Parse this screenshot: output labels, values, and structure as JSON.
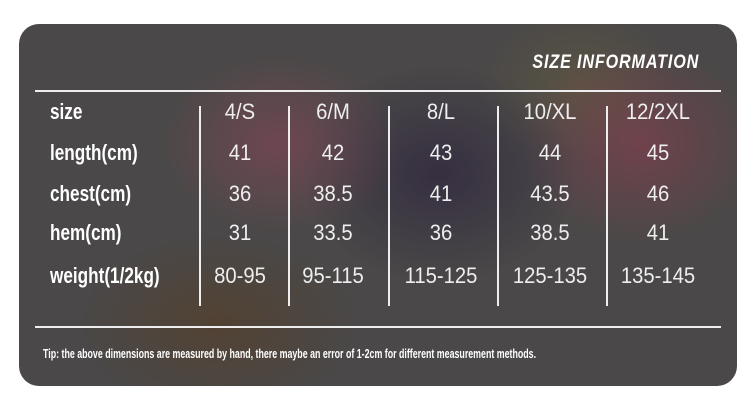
{
  "title": "SIZE INFORMATION",
  "table": {
    "rows": [
      {
        "label": "size",
        "values": [
          "4/S",
          "6/M",
          "8/L",
          "10/XL",
          "12/2XL"
        ]
      },
      {
        "label": "length(cm)",
        "values": [
          "41",
          "42",
          "43",
          "44",
          "45"
        ]
      },
      {
        "label": "chest(cm)",
        "values": [
          "36",
          "38.5",
          "41",
          "43.5",
          "46"
        ]
      },
      {
        "label": "hem(cm)",
        "values": [
          "31",
          "33.5",
          "36",
          "38.5",
          "41"
        ]
      },
      {
        "label": "weight(1/2kg)",
        "values": [
          "80-95",
          "95-115",
          "115-125",
          "125-135",
          "135-145"
        ]
      }
    ]
  },
  "tip": "Tip: the above dimensions are measured by hand, there maybe an error of 1-2cm for different measurement methods."
}
